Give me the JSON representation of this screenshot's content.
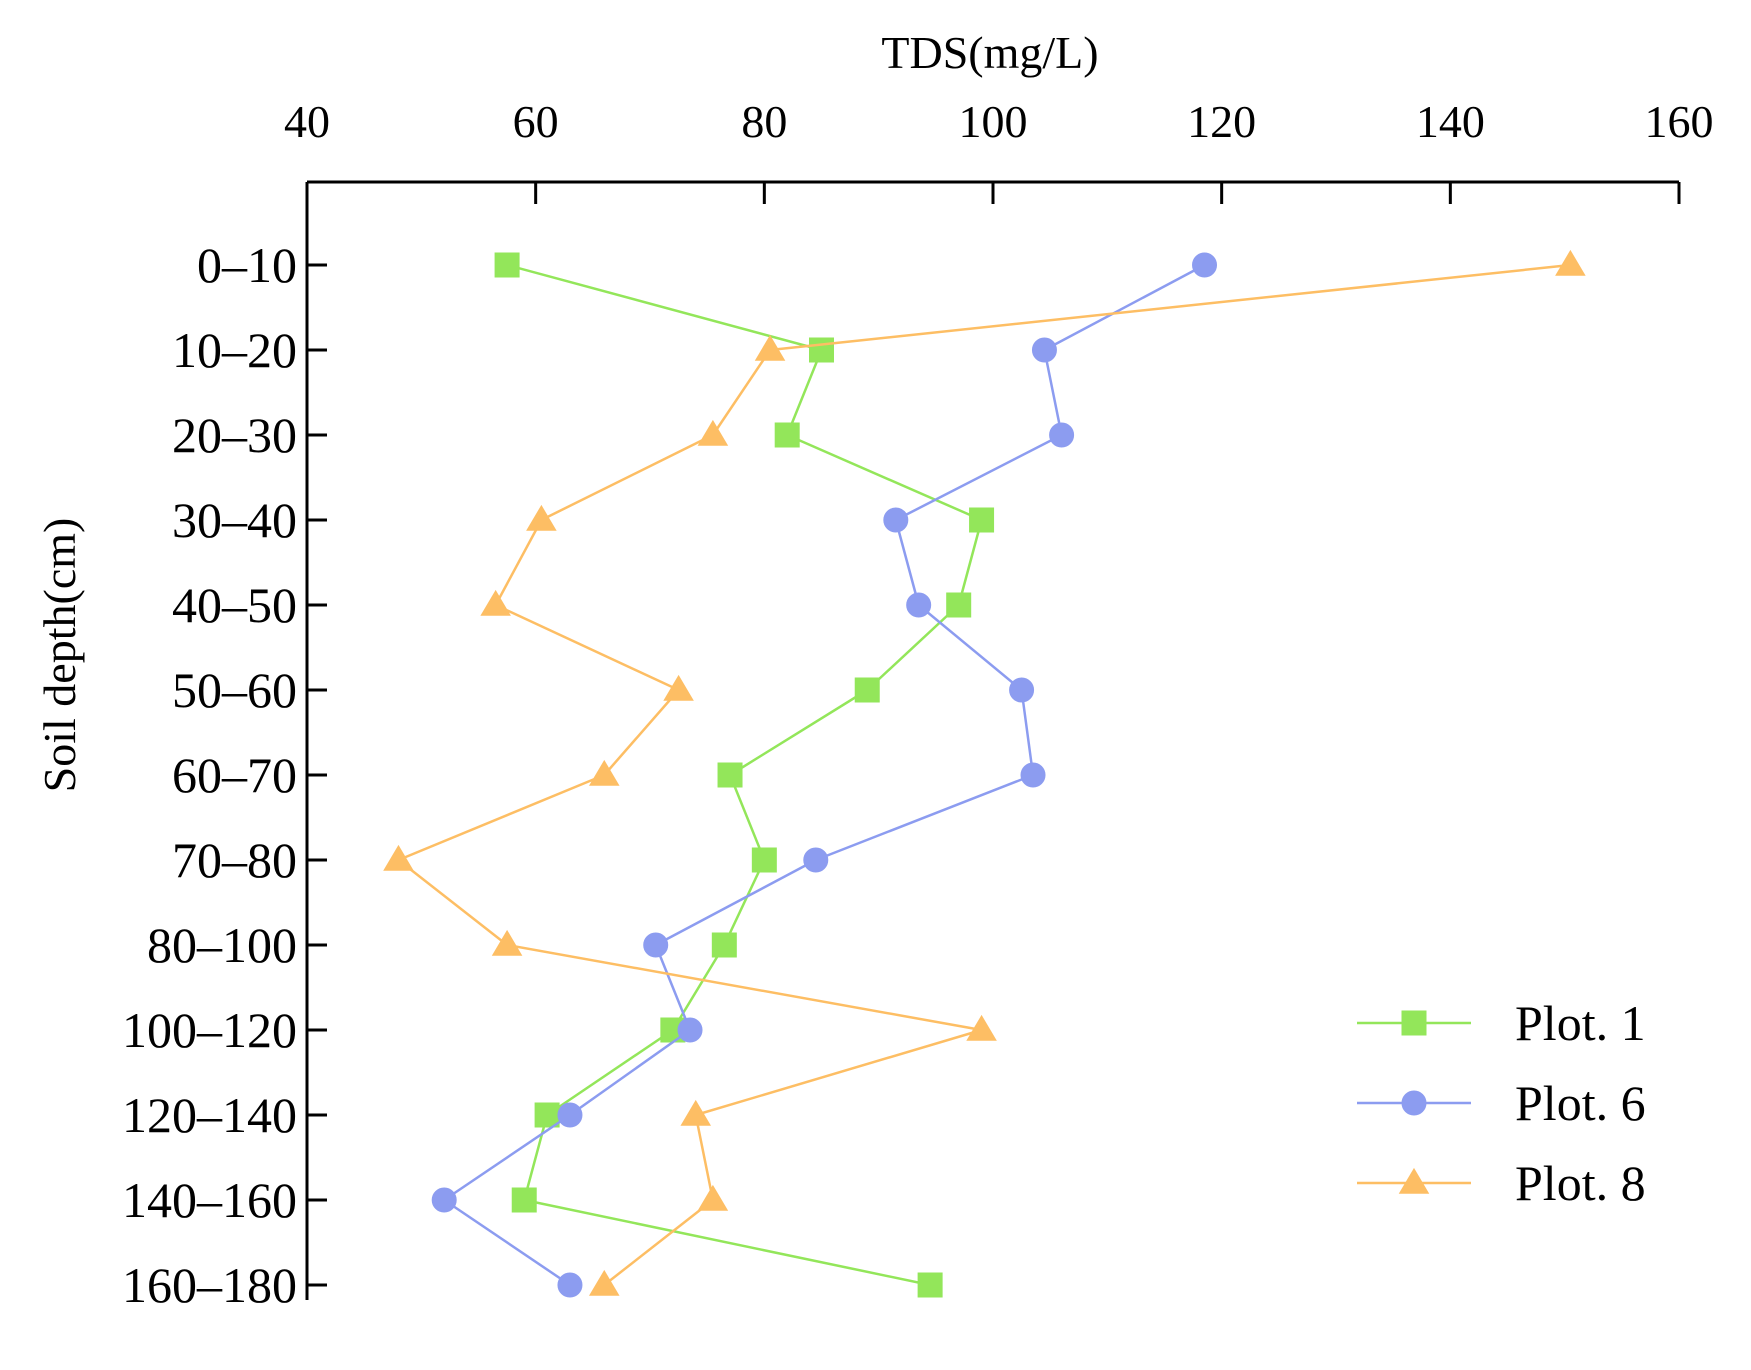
{
  "chart_data": {
    "type": "line",
    "orientation": "horizontal-profile",
    "title": "",
    "xlabel": "TDS(mg/L)",
    "ylabel": "Soil depth(cm)",
    "xlim": [
      40,
      160
    ],
    "x_ticks": [
      40,
      60,
      80,
      100,
      120,
      140,
      160
    ],
    "x_axis_position": "top",
    "categories": [
      "0–10",
      "10–20",
      "20–30",
      "30–40",
      "40–50",
      "50–60",
      "60–70",
      "70–80",
      "80–100",
      "100–120",
      "120–140",
      "140–160",
      "160–180"
    ],
    "series": [
      {
        "name": "Plot. 1",
        "color": "#93e65a",
        "marker": "square",
        "values": [
          57.5,
          85,
          82,
          99,
          97,
          89,
          77,
          80,
          76.5,
          72,
          61,
          59,
          94.5
        ]
      },
      {
        "name": "Plot. 6",
        "color": "#8c9cf0",
        "marker": "circle",
        "values": [
          118.5,
          104.5,
          106,
          91.5,
          93.5,
          102.5,
          103.5,
          84.5,
          70.5,
          73.5,
          63,
          52,
          63
        ]
      },
      {
        "name": "Plot. 8",
        "color": "#fdbe64",
        "marker": "triangle",
        "values": [
          150.5,
          80.5,
          75.5,
          60.5,
          56.5,
          72.5,
          66,
          48,
          57.5,
          99,
          74,
          75.5,
          66
        ]
      }
    ],
    "legend_position": "bottom-right",
    "grid": false
  }
}
